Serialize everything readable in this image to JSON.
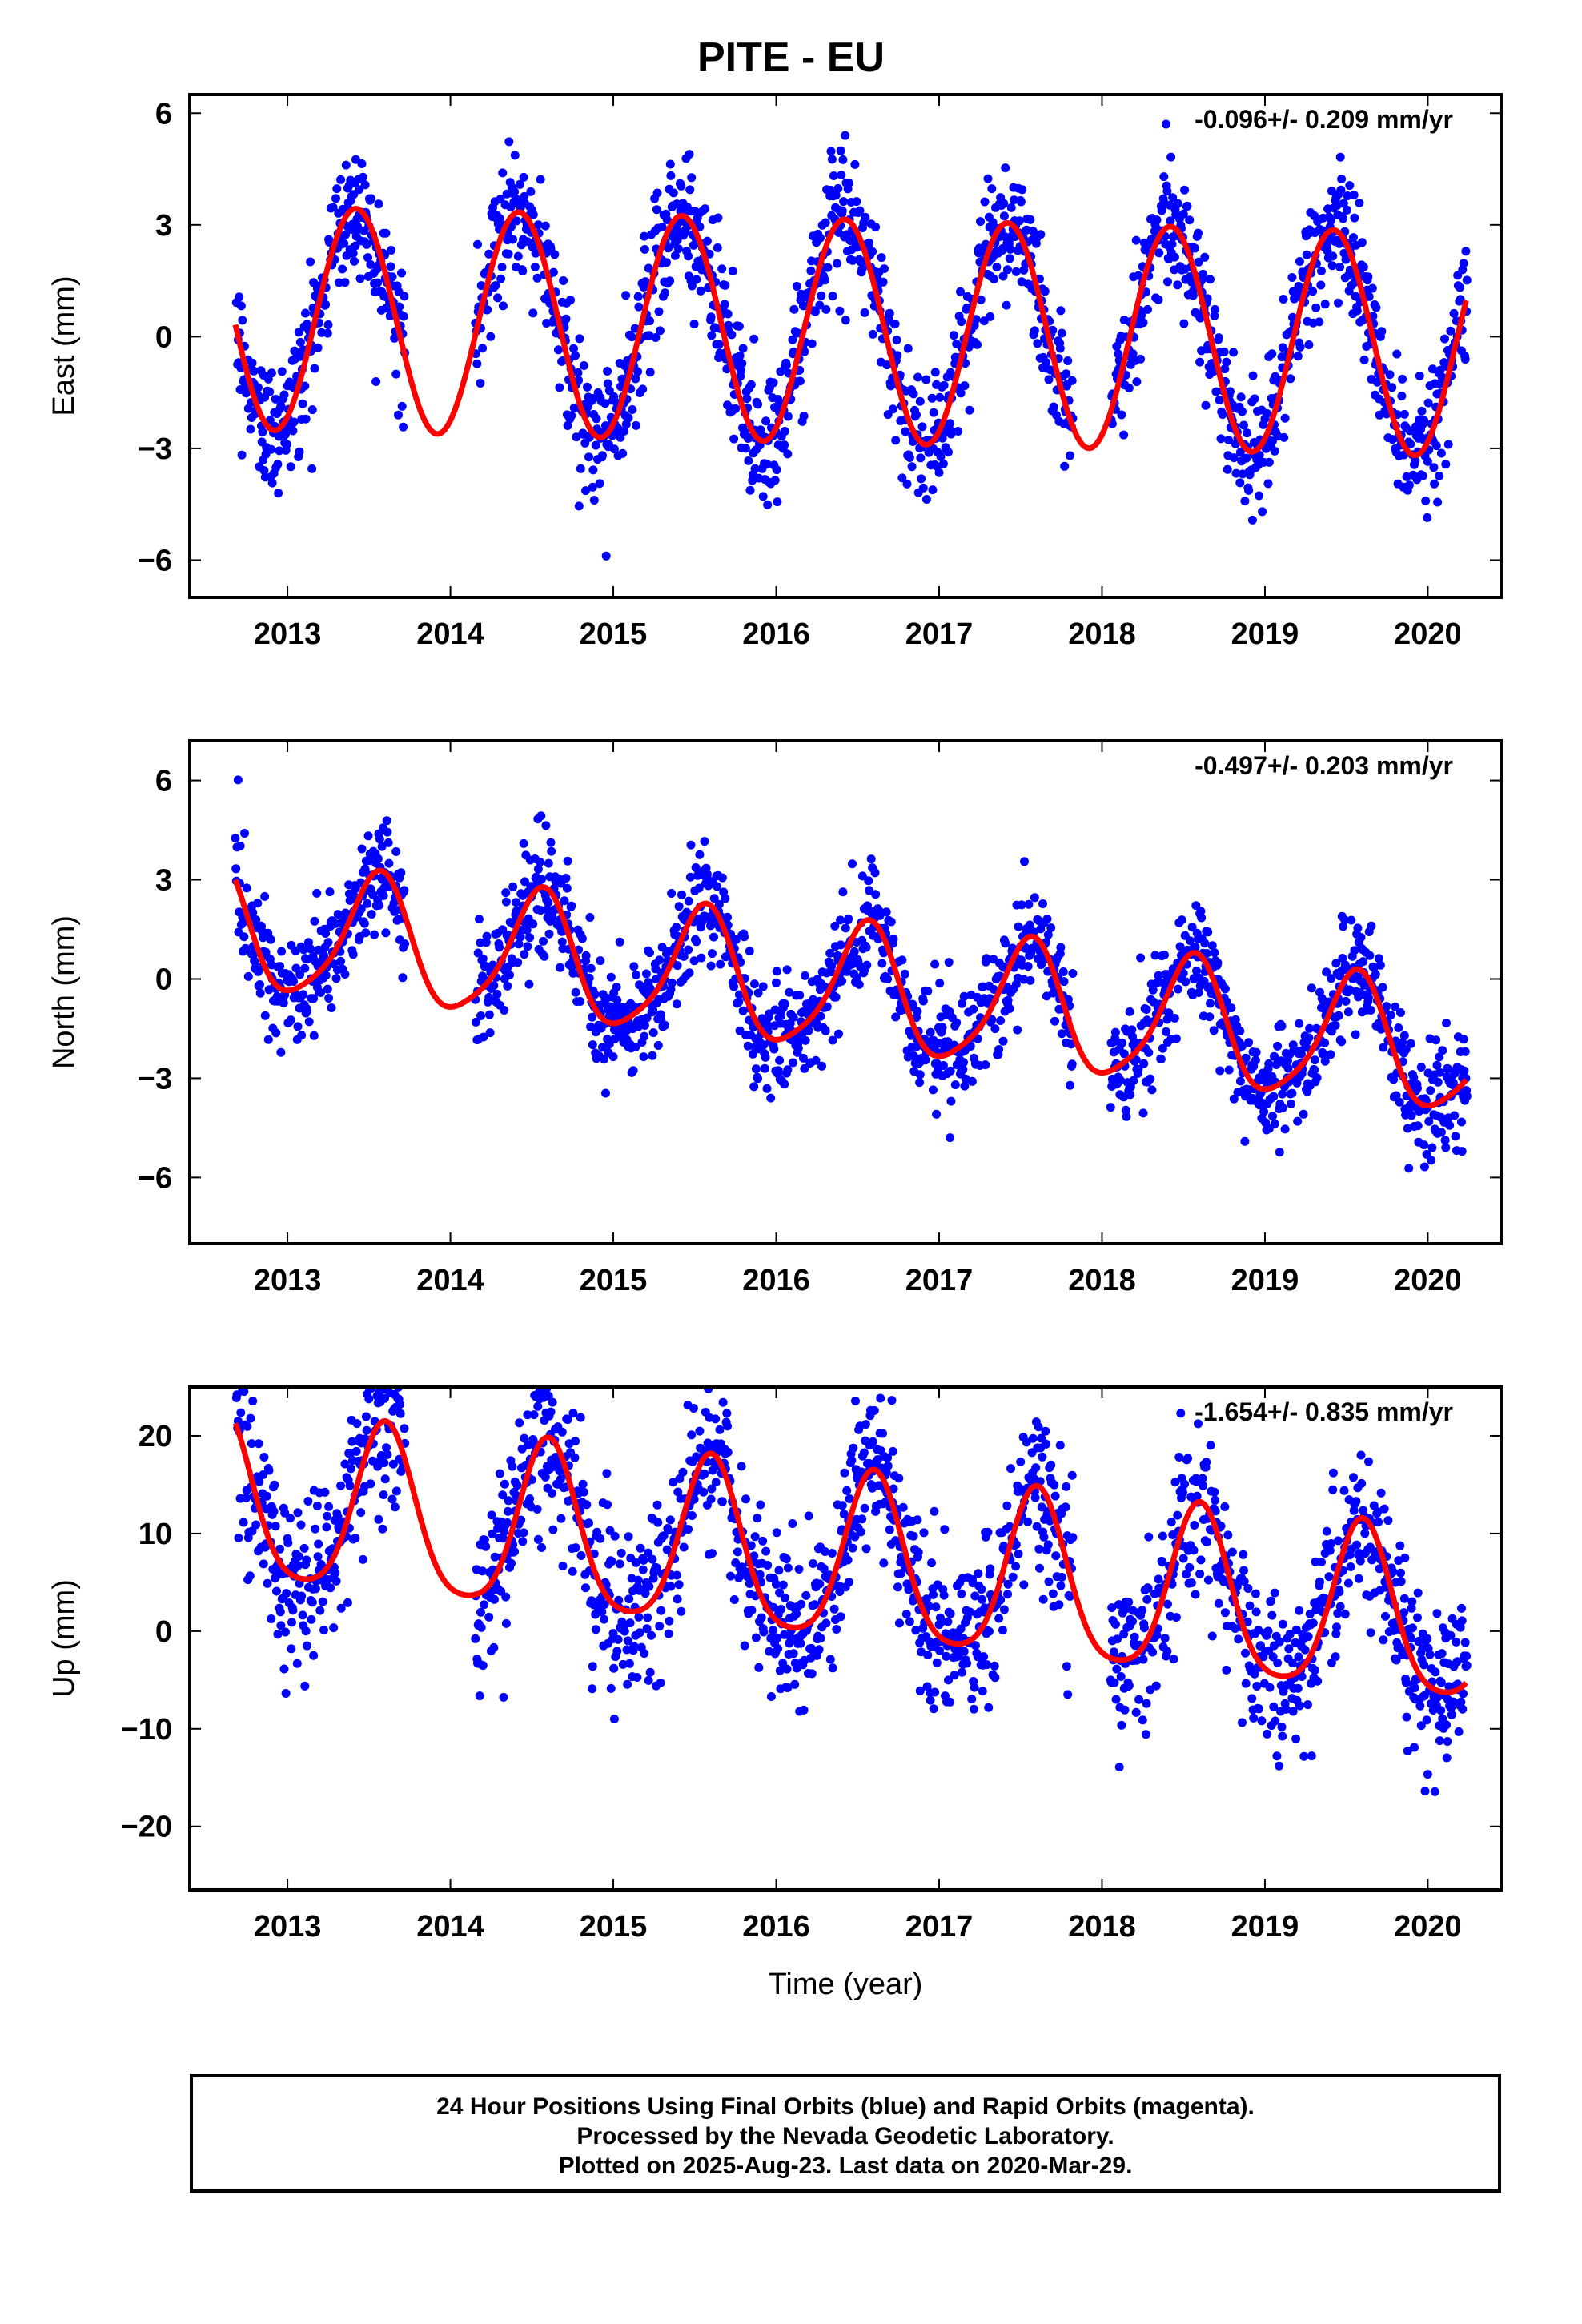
{
  "title": "PITE - EU",
  "footer": {
    "line1": "24 Hour Positions Using Final Orbits (blue) and Rapid Orbits (magenta).",
    "line2": "Processed by the Nevada Geodetic Laboratory.",
    "line3": "Plotted on 2025-Aug-23. Last data on 2020-Mar-29."
  },
  "colors": {
    "final_orbits": "#0000ff",
    "model": "#ff0000",
    "axes": "#000000"
  },
  "chart_data": [
    {
      "type": "scatter",
      "ylabel": "East (mm)",
      "xlabel": "",
      "rate": "-0.096+/- 0.209 mm/yr",
      "xlim": [
        2012.4,
        2020.45
      ],
      "ylim": [
        -7,
        6.5
      ],
      "xticks": [
        2013,
        2014,
        2015,
        2016,
        2017,
        2018,
        2019,
        2020
      ],
      "yticks": [
        -6,
        -3,
        0,
        3,
        6
      ],
      "data_start": 2012.68,
      "data_end": 2020.24,
      "gaps": [
        [
          2013.72,
          2014.15
        ],
        [
          2017.82,
          2018.05
        ]
      ],
      "series": [
        {
          "kind": "points",
          "color": "#0000ff",
          "model": {
            "offset": 0.15,
            "rate": -0.096,
            "ref_year": 2016.4,
            "annual_amp": 3.0,
            "annual_peak": 0.42,
            "semiannual_amp": 0.0,
            "semiannual_peak": 0.0,
            "noise": 0.9
          }
        },
        {
          "kind": "line",
          "color": "#ff0000",
          "model": {
            "offset": 0.15,
            "rate": -0.096,
            "ref_year": 2016.4,
            "annual_amp": 3.0,
            "annual_peak": 0.42,
            "semiannual_amp": 0.0,
            "semiannual_peak": 0.0
          }
        }
      ]
    },
    {
      "type": "scatter",
      "ylabel": "North (mm)",
      "xlabel": "",
      "rate": "-0.497+/- 0.203 mm/yr",
      "xlim": [
        2012.4,
        2020.45
      ],
      "ylim": [
        -8,
        7.2
      ],
      "xticks": [
        2013,
        2014,
        2015,
        2016,
        2017,
        2018,
        2019,
        2020
      ],
      "yticks": [
        -6,
        -3,
        0,
        3,
        6
      ],
      "data_start": 2012.68,
      "data_end": 2020.24,
      "gaps": [
        [
          2013.72,
          2014.15
        ],
        [
          2017.82,
          2018.05
        ]
      ],
      "series": [
        {
          "kind": "points",
          "color": "#0000ff",
          "model": {
            "offset": 1.5,
            "rate": -0.497,
            "ref_year": 2012.7,
            "annual_amp": 1.9,
            "annual_peak": 0.55,
            "semiannual_amp": 0.35,
            "semiannual_peak": 0.1,
            "noise": 0.85
          }
        },
        {
          "kind": "line",
          "color": "#ff0000",
          "model": {
            "offset": 1.5,
            "rate": -0.497,
            "ref_year": 2012.7,
            "annual_amp": 1.9,
            "annual_peak": 0.55,
            "semiannual_amp": 0.35,
            "semiannual_peak": 0.1
          }
        }
      ]
    },
    {
      "type": "scatter",
      "ylabel": "Up (mm)",
      "xlabel": "Time (year)",
      "rate": "-1.654+/- 0.835 mm/yr",
      "xlim": [
        2012.4,
        2020.45
      ],
      "ylim": [
        -26.5,
        25
      ],
      "xticks": [
        2013,
        2014,
        2015,
        2016,
        2017,
        2018,
        2019,
        2020
      ],
      "yticks": [
        -20,
        -10,
        0,
        10,
        20
      ],
      "data_start": 2012.68,
      "data_end": 2020.24,
      "gaps": [
        [
          2013.72,
          2014.15
        ],
        [
          2017.82,
          2018.05
        ]
      ],
      "series": [
        {
          "kind": "points",
          "color": "#0000ff",
          "model": {
            "offset": 13.0,
            "rate": -1.654,
            "ref_year": 2012.7,
            "annual_amp": 8.5,
            "annual_peak": 0.6,
            "semiannual_amp": 1.5,
            "semiannual_peak": 0.1,
            "noise": 4.2
          }
        },
        {
          "kind": "line",
          "color": "#ff0000",
          "model": {
            "offset": 13.0,
            "rate": -1.654,
            "ref_year": 2012.7,
            "annual_amp": 8.5,
            "annual_peak": 0.6,
            "semiannual_amp": 1.5,
            "semiannual_peak": 0.1
          }
        }
      ]
    }
  ]
}
